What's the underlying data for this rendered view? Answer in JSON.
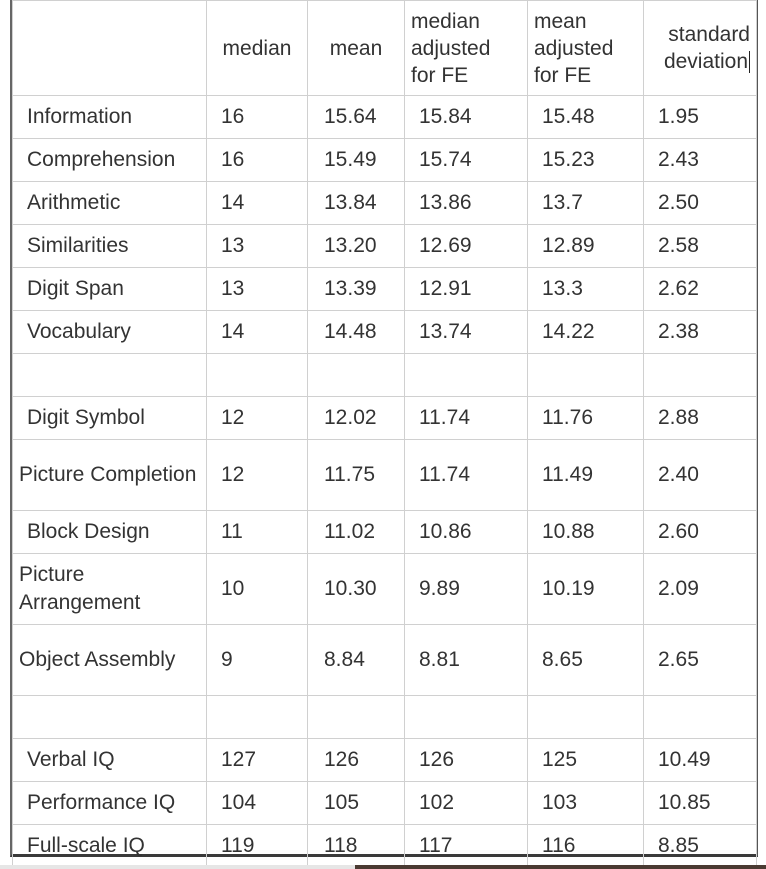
{
  "headers": [
    "",
    "median",
    "mean",
    [
      "median",
      "adjusted",
      "for FE"
    ],
    [
      "mean",
      "adjusted",
      "for FE"
    ],
    [
      "standard",
      "deviation"
    ]
  ],
  "groups": [
    [
      {
        "label": "Information",
        "values": [
          "16",
          "15.64",
          "15.84",
          "15.48",
          "1.95"
        ]
      },
      {
        "label": "Comprehension",
        "values": [
          "16",
          "15.49",
          "15.74",
          "15.23",
          "2.43"
        ]
      },
      {
        "label": "Arithmetic",
        "values": [
          "14",
          "13.84",
          "13.86",
          "13.7",
          "2.50"
        ]
      },
      {
        "label": "Similarities",
        "values": [
          "13",
          "13.20",
          "12.69",
          "12.89",
          "2.58"
        ]
      },
      {
        "label": "Digit Span",
        "values": [
          "13",
          "13.39",
          "12.91",
          "13.3",
          "2.62"
        ]
      },
      {
        "label": "Vocabulary",
        "values": [
          "14",
          "14.48",
          "13.74",
          "14.22",
          "2.38"
        ]
      }
    ],
    [
      {
        "label": "Digit Symbol",
        "values": [
          "12",
          "12.02",
          "11.74",
          "11.76",
          "2.88"
        ]
      },
      {
        "label": "Picture Completion",
        "values": [
          "12",
          "11.75",
          "11.74",
          "11.49",
          "2.40"
        ]
      },
      {
        "label": "Block Design",
        "values": [
          "11",
          "11.02",
          "10.86",
          "10.88",
          "2.60"
        ]
      },
      {
        "label": "Picture Arrangement",
        "values": [
          "10",
          "10.30",
          "9.89",
          "10.19",
          "2.09"
        ]
      },
      {
        "label": "Object Assembly",
        "values": [
          "9",
          "8.84",
          "8.81",
          "8.65",
          "2.65"
        ]
      }
    ],
    [
      {
        "label": "Verbal IQ",
        "values": [
          "127",
          "126",
          "126",
          "125",
          "10.49"
        ]
      },
      {
        "label": "Performance IQ",
        "values": [
          "104",
          "105",
          "102",
          "103",
          "10.85"
        ]
      },
      {
        "label": "Full-scale IQ",
        "values": [
          "119",
          "118",
          "117",
          "116",
          "8.85"
        ]
      }
    ]
  ]
}
